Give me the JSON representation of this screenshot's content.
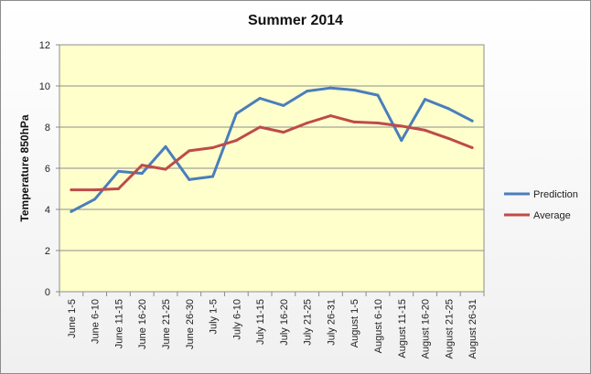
{
  "chart_data": {
    "type": "line",
    "title": "Summer 2014",
    "xlabel": "",
    "ylabel": "Temperature 850hPa",
    "ylim": [
      0,
      12
    ],
    "yticks": [
      0,
      2,
      4,
      6,
      8,
      10,
      12
    ],
    "grid": true,
    "legend_position": "right",
    "plot_background": "#ffffcc",
    "categories": [
      "June 1-5",
      "June 6-10",
      "June 11-15",
      "June 16-20",
      "June 21-25",
      "June 26-30",
      "July 1-5",
      "July 6-10",
      "July 11-15",
      "July 16-20",
      "July 21-25",
      "July 26-31",
      "August 1-5",
      "August 6-10",
      "August 11-15",
      "August 16-20",
      "August 21-25",
      "August 26-31"
    ],
    "series": [
      {
        "name": "Prediction",
        "color": "#4a7ebb",
        "values": [
          3.9,
          4.5,
          5.85,
          5.75,
          7.05,
          5.45,
          5.6,
          8.65,
          9.4,
          9.05,
          9.75,
          9.9,
          9.8,
          9.55,
          7.35,
          9.35,
          8.9,
          8.3
        ]
      },
      {
        "name": "Average",
        "color": "#be4b48",
        "values": [
          4.95,
          4.95,
          5.0,
          6.15,
          5.95,
          6.85,
          7.0,
          7.35,
          8.0,
          7.75,
          8.2,
          8.55,
          8.25,
          8.2,
          8.05,
          7.85,
          7.45,
          7.0
        ]
      }
    ]
  }
}
